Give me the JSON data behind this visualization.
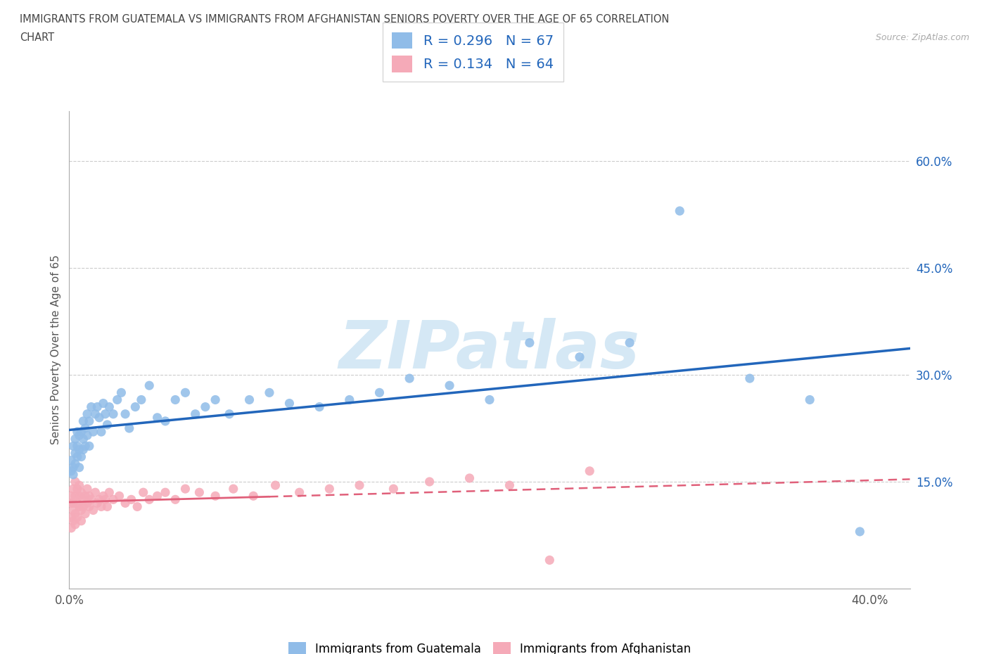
{
  "title_line1": "IMMIGRANTS FROM GUATEMALA VS IMMIGRANTS FROM AFGHANISTAN SENIORS POVERTY OVER THE AGE OF 65 CORRELATION",
  "title_line2": "CHART",
  "source": "Source: ZipAtlas.com",
  "ylabel": "Seniors Poverty Over the Age of 65",
  "xlim": [
    0.0,
    0.42
  ],
  "ylim": [
    0.0,
    0.67
  ],
  "xticks": [
    0.0,
    0.1,
    0.2,
    0.3,
    0.4
  ],
  "xtick_labels": [
    "0.0%",
    "",
    "",
    "",
    "40.0%"
  ],
  "yticks": [
    0.15,
    0.3,
    0.45,
    0.6
  ],
  "ytick_labels": [
    "15.0%",
    "30.0%",
    "45.0%",
    "60.0%"
  ],
  "r_guatemala": 0.296,
  "n_guatemala": 67,
  "r_afghanistan": 0.134,
  "n_afghanistan": 64,
  "color_guatemala": "#90bce8",
  "color_afghanistan": "#f5aab8",
  "line_color_guatemala": "#2266bb",
  "line_color_afghanistan": "#e0607a",
  "watermark_color": "#d5e8f5",
  "guatemala_x": [
    0.001,
    0.001,
    0.002,
    0.002,
    0.002,
    0.003,
    0.003,
    0.003,
    0.004,
    0.004,
    0.004,
    0.005,
    0.005,
    0.005,
    0.006,
    0.006,
    0.007,
    0.007,
    0.007,
    0.008,
    0.008,
    0.009,
    0.009,
    0.01,
    0.01,
    0.011,
    0.012,
    0.013,
    0.014,
    0.015,
    0.016,
    0.017,
    0.018,
    0.019,
    0.02,
    0.022,
    0.024,
    0.026,
    0.028,
    0.03,
    0.033,
    0.036,
    0.04,
    0.044,
    0.048,
    0.053,
    0.058,
    0.063,
    0.068,
    0.073,
    0.08,
    0.09,
    0.1,
    0.11,
    0.125,
    0.14,
    0.155,
    0.17,
    0.19,
    0.21,
    0.23,
    0.255,
    0.28,
    0.305,
    0.34,
    0.37,
    0.395
  ],
  "guatemala_y": [
    0.165,
    0.18,
    0.17,
    0.2,
    0.16,
    0.19,
    0.21,
    0.175,
    0.2,
    0.22,
    0.185,
    0.17,
    0.195,
    0.215,
    0.22,
    0.185,
    0.195,
    0.21,
    0.235,
    0.225,
    0.2,
    0.215,
    0.245,
    0.2,
    0.235,
    0.255,
    0.22,
    0.245,
    0.255,
    0.24,
    0.22,
    0.26,
    0.245,
    0.23,
    0.255,
    0.245,
    0.265,
    0.275,
    0.245,
    0.225,
    0.255,
    0.265,
    0.285,
    0.24,
    0.235,
    0.265,
    0.275,
    0.245,
    0.255,
    0.265,
    0.245,
    0.265,
    0.275,
    0.26,
    0.255,
    0.265,
    0.275,
    0.295,
    0.285,
    0.265,
    0.345,
    0.325,
    0.345,
    0.53,
    0.295,
    0.265,
    0.08
  ],
  "afghanistan_x": [
    0.001,
    0.001,
    0.001,
    0.001,
    0.002,
    0.002,
    0.002,
    0.002,
    0.003,
    0.003,
    0.003,
    0.003,
    0.004,
    0.004,
    0.004,
    0.005,
    0.005,
    0.005,
    0.006,
    0.006,
    0.006,
    0.007,
    0.007,
    0.008,
    0.008,
    0.009,
    0.009,
    0.01,
    0.01,
    0.011,
    0.012,
    0.013,
    0.014,
    0.015,
    0.016,
    0.017,
    0.018,
    0.019,
    0.02,
    0.022,
    0.025,
    0.028,
    0.031,
    0.034,
    0.037,
    0.04,
    0.044,
    0.048,
    0.053,
    0.058,
    0.065,
    0.073,
    0.082,
    0.092,
    0.103,
    0.115,
    0.13,
    0.145,
    0.162,
    0.18,
    0.2,
    0.22,
    0.24,
    0.26
  ],
  "afghanistan_y": [
    0.1,
    0.12,
    0.13,
    0.085,
    0.11,
    0.14,
    0.095,
    0.12,
    0.13,
    0.105,
    0.15,
    0.09,
    0.12,
    0.14,
    0.1,
    0.13,
    0.115,
    0.145,
    0.11,
    0.135,
    0.095,
    0.125,
    0.115,
    0.13,
    0.105,
    0.12,
    0.14,
    0.115,
    0.13,
    0.125,
    0.11,
    0.135,
    0.12,
    0.125,
    0.115,
    0.13,
    0.125,
    0.115,
    0.135,
    0.125,
    0.13,
    0.12,
    0.125,
    0.115,
    0.135,
    0.125,
    0.13,
    0.135,
    0.125,
    0.14,
    0.135,
    0.13,
    0.14,
    0.13,
    0.145,
    0.135,
    0.14,
    0.145,
    0.14,
    0.15,
    0.155,
    0.145,
    0.04,
    0.165
  ],
  "afg_solid_xlim": [
    0.0,
    0.1
  ],
  "afg_dash_xlim": [
    0.1,
    0.42
  ]
}
